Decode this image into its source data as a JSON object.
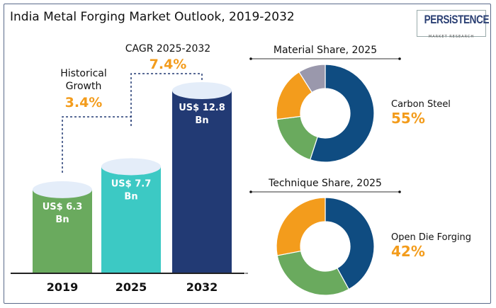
{
  "title": "India Metal Forging Market Outlook, 2019-2032",
  "logo": {
    "name": "PERSiSTENCE",
    "tagline": "MARKET RESEARCH"
  },
  "chart_data": [
    {
      "type": "bar",
      "categories": [
        "2019",
        "2025",
        "2032"
      ],
      "values": [
        6.3,
        7.7,
        12.8
      ],
      "labels": [
        "US$ 6.3 Bn",
        "US$ 7.7 Bn",
        "US$ 12.8 Bn"
      ],
      "colors": [
        "#6aaa5e",
        "#3cc9c4",
        "#223a74"
      ],
      "annotations": [
        {
          "label": "Historical Growth",
          "value": "3.4%"
        },
        {
          "label": "CAGR 2025-2032",
          "value": "7.4%"
        }
      ]
    },
    {
      "type": "pie",
      "title": "Material Share, 2025",
      "values": [
        55,
        18,
        18,
        9
      ],
      "colors": [
        "#0f4c81",
        "#6aaa5e",
        "#f39c1c",
        "#9a98ac"
      ],
      "highlight_label": "Carbon Steel",
      "highlight_value": "55%"
    },
    {
      "type": "pie",
      "title": "Technique Share, 2025",
      "values": [
        42,
        30,
        28
      ],
      "colors": [
        "#0f4c81",
        "#6aaa5e",
        "#f39c1c"
      ],
      "highlight_label": "Open Die Forging",
      "highlight_value": "42%"
    }
  ]
}
